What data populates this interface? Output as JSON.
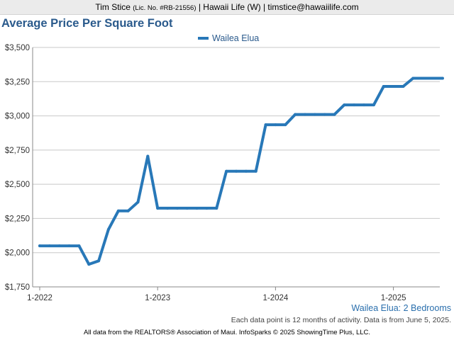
{
  "header": {
    "agent_name": "Tim Stice",
    "license": "(Lic. No. #RB-21556)",
    "rest": "| Hawaii Life (W) | timstice@hawaiilife.com"
  },
  "chart_data": {
    "type": "line",
    "title": "Average Price Per Square Foot",
    "subtitle": "Wailea Elua: 2 Bedrooms",
    "xlabel": "",
    "ylabel": "",
    "ylim": [
      1750,
      3500
    ],
    "yticks": [
      1750,
      2000,
      2250,
      2500,
      2750,
      3000,
      3250,
      3500
    ],
    "ytick_labels": [
      "$1,750",
      "$2,000",
      "$2,250",
      "$2,500",
      "$2,750",
      "$3,000",
      "$3,250",
      "$3,500"
    ],
    "xticks": [
      {
        "label": "1-2022",
        "month": 0
      },
      {
        "label": "1-2023",
        "month": 12
      },
      {
        "label": "1-2024",
        "month": 24
      },
      {
        "label": "1-2025",
        "month": 36
      }
    ],
    "x_months": [
      0,
      1,
      2,
      3,
      4,
      5,
      6,
      7,
      8,
      9,
      10,
      11,
      12,
      13,
      14,
      15,
      16,
      17,
      18,
      19,
      20,
      21,
      22,
      23,
      24,
      25,
      26,
      27,
      28,
      29,
      30,
      31,
      32,
      33,
      34,
      35,
      36,
      37,
      38,
      39,
      40,
      41
    ],
    "series": [
      {
        "name": "Wailea Elua",
        "color": "#2878b8",
        "values": [
          2050,
          2050,
          2050,
          2050,
          2050,
          1915,
          1940,
          2170,
          2305,
          2305,
          2370,
          2705,
          2325,
          2325,
          2325,
          2325,
          2325,
          2325,
          2325,
          2595,
          2595,
          2595,
          2595,
          2935,
          2935,
          2935,
          3010,
          3010,
          3010,
          3010,
          3010,
          3080,
          3080,
          3080,
          3080,
          3215,
          3215,
          3215,
          3275,
          3275,
          3275,
          3275
        ]
      }
    ],
    "grid": true,
    "legend": "top-center"
  },
  "notes": {
    "activity": "Each data point is 12 months of activity. Data is from June 5, 2025.",
    "footer": "All data from the REALTORS® Association of Maui. InfoSparks © 2025 ShowingTime Plus, LLC."
  }
}
